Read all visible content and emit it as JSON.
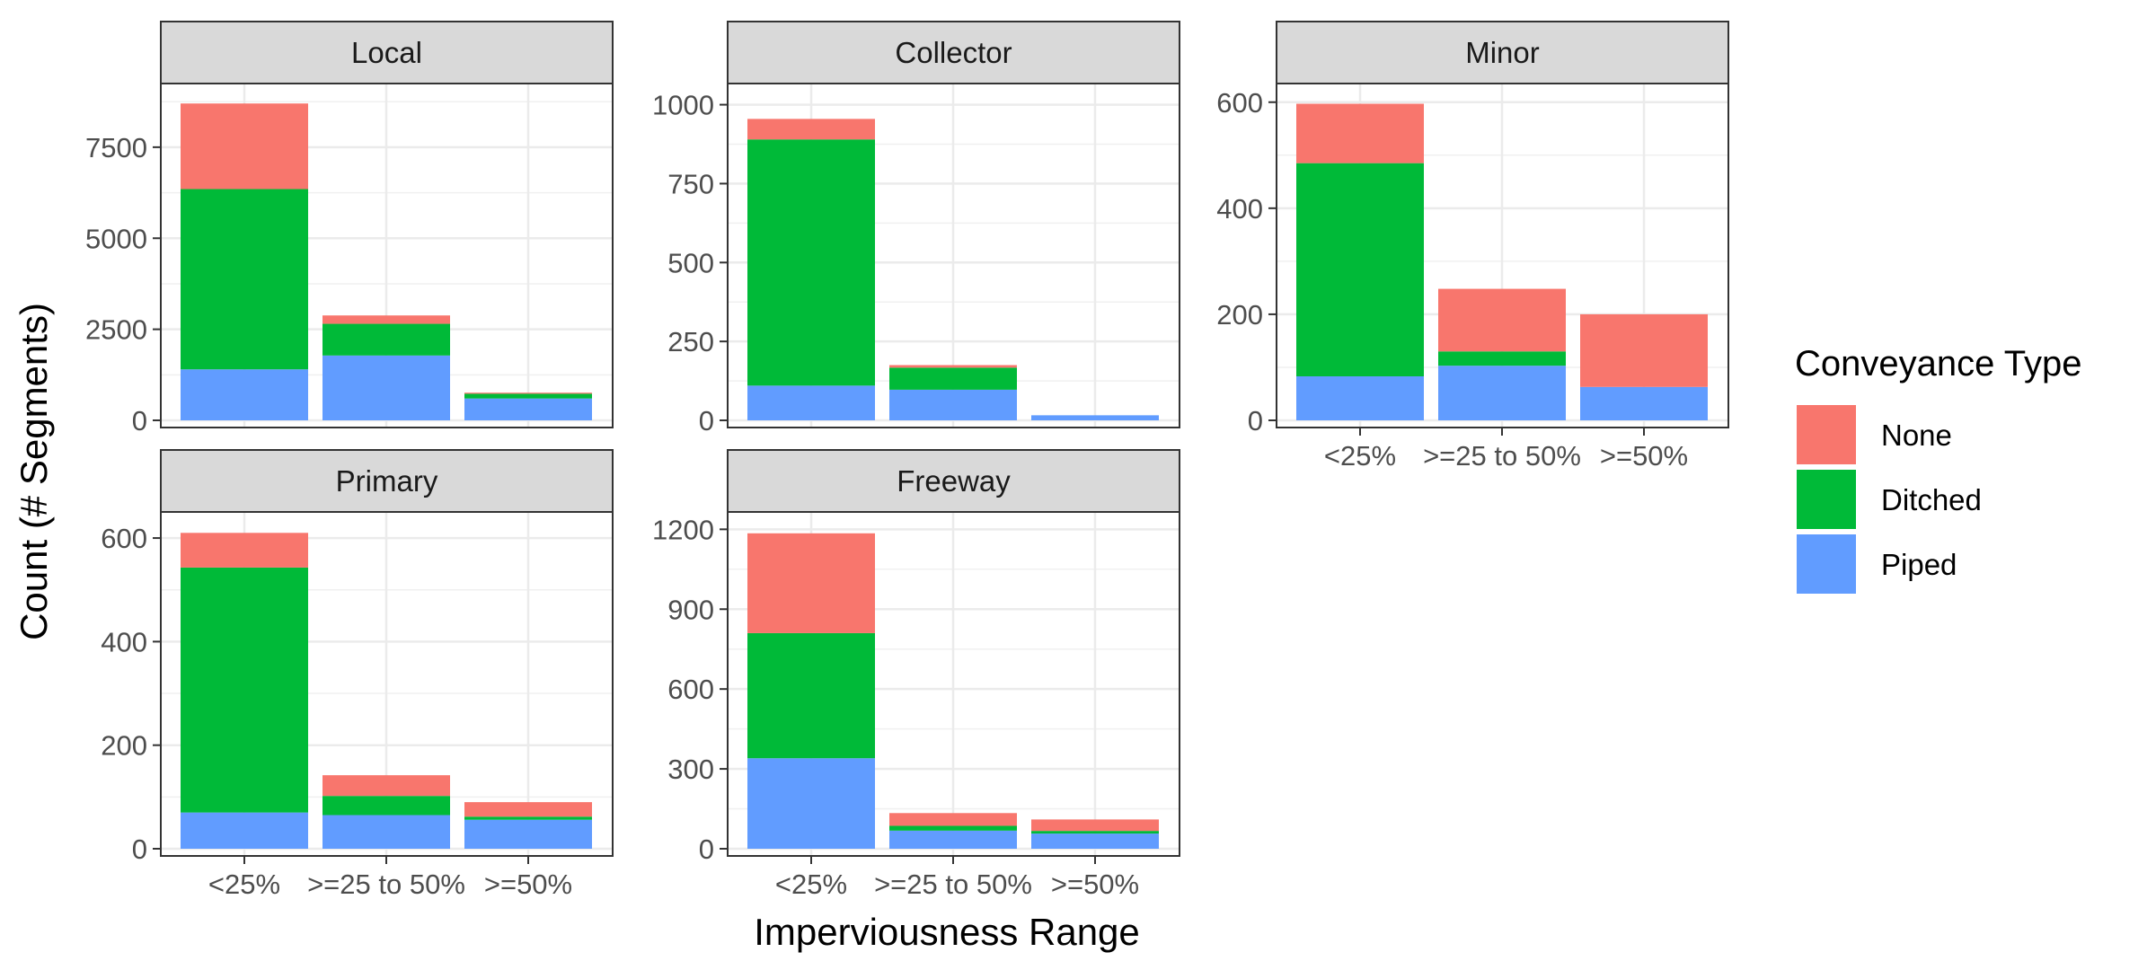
{
  "chart_data": {
    "type": "bar",
    "stacked": true,
    "facet": "wrap",
    "xlabel": "Imperviousness Range",
    "ylabel": "Count (# Segments)",
    "categories": [
      "<25%",
      ">=25 to 50%",
      ">=50%"
    ],
    "legend": {
      "title": "Conveyance Type",
      "position": "right",
      "entries": [
        {
          "name": "None",
          "color": "#F8766D"
        },
        {
          "name": "Ditched",
          "color": "#00BA38"
        },
        {
          "name": "Piped",
          "color": "#619CFF"
        }
      ]
    },
    "stack_order_bottom_to_top": [
      "Piped",
      "Ditched",
      "None"
    ],
    "grid": true,
    "panels": [
      {
        "title": "Local",
        "ylim": [
          0,
          9100
        ],
        "yticks": [
          0,
          2500,
          5000,
          7500
        ],
        "yticklabels": [
          "0",
          "2500",
          "5000",
          "7500"
        ],
        "series": [
          {
            "name": "Piped",
            "values": [
              1400,
              1780,
              600
            ]
          },
          {
            "name": "Ditched",
            "values": [
              4950,
              870,
              130
            ]
          },
          {
            "name": "None",
            "values": [
              2350,
              230,
              30
            ]
          }
        ]
      },
      {
        "title": "Collector",
        "ylim": [
          0,
          1050
        ],
        "yticks": [
          0,
          250,
          500,
          750,
          1000
        ],
        "yticklabels": [
          "0",
          "250",
          "500",
          "750",
          "1000"
        ],
        "series": [
          {
            "name": "Piped",
            "values": [
              110,
              97,
              16
            ]
          },
          {
            "name": "Ditched",
            "values": [
              780,
              70,
              0
            ]
          },
          {
            "name": "None",
            "values": [
              65,
              8,
              0
            ]
          }
        ]
      },
      {
        "title": "Minor",
        "ylim": [
          0,
          625
        ],
        "yticks": [
          0,
          200,
          400,
          600
        ],
        "yticklabels": [
          "0",
          "200",
          "400",
          "600"
        ],
        "series": [
          {
            "name": "Piped",
            "values": [
              83,
              103,
              63
            ]
          },
          {
            "name": "Ditched",
            "values": [
              402,
              27,
              0
            ]
          },
          {
            "name": "None",
            "values": [
              112,
              118,
              137
            ]
          }
        ]
      },
      {
        "title": "Primary",
        "ylim": [
          0,
          640
        ],
        "yticks": [
          0,
          200,
          400,
          600
        ],
        "yticklabels": [
          "0",
          "200",
          "400",
          "600"
        ],
        "series": [
          {
            "name": "Piped",
            "values": [
              70,
              65,
              56
            ]
          },
          {
            "name": "Ditched",
            "values": [
              473,
              37,
              6
            ]
          },
          {
            "name": "None",
            "values": [
              67,
              40,
              28
            ]
          }
        ]
      },
      {
        "title": "Freeway",
        "ylim": [
          0,
          1245
        ],
        "yticks": [
          0,
          300,
          600,
          900,
          1200
        ],
        "yticklabels": [
          "0",
          "300",
          "600",
          "900",
          "1200"
        ],
        "series": [
          {
            "name": "Piped",
            "values": [
              340,
              68,
              57
            ]
          },
          {
            "name": "Ditched",
            "values": [
              470,
              18,
              10
            ]
          },
          {
            "name": "None",
            "values": [
              375,
              48,
              43
            ]
          }
        ]
      }
    ]
  }
}
